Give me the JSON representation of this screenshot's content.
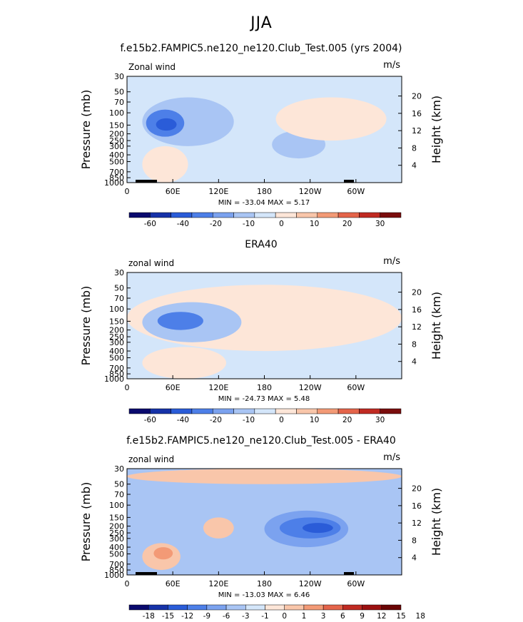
{
  "page_title": "JJA",
  "chart_data": [
    {
      "type": "heatmap",
      "title": "f.e15b2.FAMPIC5.ne120_ne120.Club_Test.005 (yrs 2004)",
      "left_label": "Zonal wind",
      "units": "m/s",
      "ylabel": "Pressure (mb)",
      "ylabel_right": "Height (km)",
      "x_ticks": [
        "0",
        "60E",
        "120E",
        "180",
        "120W",
        "60W"
      ],
      "y_ticks": [
        "30",
        "50",
        "70",
        "100",
        "150",
        "200",
        "250",
        "300",
        "400",
        "500",
        "700",
        "850",
        "1000"
      ],
      "height_ticks": [
        "20",
        "16",
        "12",
        "8",
        "4"
      ],
      "stats": "MIN = -33.04   MAX =    5.17",
      "colorbar_labels": [
        "-60",
        "-40",
        "-20",
        "-10",
        "0",
        "10",
        "20",
        "30"
      ],
      "regions": [
        {
          "level": "-5",
          "x": [
            20,
            140
          ],
          "p": [
            60,
            300
          ]
        },
        {
          "level": "-15",
          "x": [
            25,
            75
          ],
          "p": [
            90,
            220
          ]
        },
        {
          "level": "-25",
          "x": [
            38,
            65
          ],
          "p": [
            120,
            180
          ]
        },
        {
          "level": "-5",
          "x": [
            190,
            260
          ],
          "p": [
            180,
            450
          ]
        },
        {
          "level": "5",
          "x": [
            195,
            340
          ],
          "p": [
            60,
            250
          ]
        },
        {
          "level": "5",
          "x": [
            20,
            80
          ],
          "p": [
            300,
            1000
          ]
        }
      ]
    },
    {
      "type": "heatmap",
      "title": "ERA40",
      "left_label": "zonal wind",
      "units": "m/s",
      "ylabel": "Pressure (mb)",
      "ylabel_right": "Height (km)",
      "x_ticks": [
        "0",
        "60E",
        "120E",
        "180",
        "120W",
        "60W"
      ],
      "y_ticks": [
        "30",
        "50",
        "70",
        "100",
        "150",
        "200",
        "250",
        "300",
        "400",
        "500",
        "700",
        "850",
        "1000"
      ],
      "height_ticks": [
        "20",
        "16",
        "12",
        "8",
        "4"
      ],
      "stats": "MIN = -24.73   MAX =    5.48",
      "colorbar_labels": [
        "-60",
        "-40",
        "-20",
        "-10",
        "0",
        "10",
        "20",
        "30"
      ],
      "regions": [
        {
          "level": "5",
          "x": [
            0,
            360
          ],
          "p": [
            45,
            400
          ]
        },
        {
          "level": "-5",
          "x": [
            20,
            150
          ],
          "p": [
            80,
            300
          ]
        },
        {
          "level": "-15",
          "x": [
            40,
            100
          ],
          "p": [
            110,
            200
          ]
        },
        {
          "level": "5",
          "x": [
            20,
            130
          ],
          "p": [
            350,
            1000
          ]
        },
        {
          "level": "5",
          "x": [
            200,
            330
          ],
          "p": [
            70,
            250
          ]
        }
      ]
    },
    {
      "type": "heatmap",
      "title": "f.e15b2.FAMPIC5.ne120_ne120.Club_Test.005 - ERA40",
      "left_label": "zonal wind",
      "units": "m/s",
      "ylabel": "Pressure (mb)",
      "ylabel_right": "Height (km)",
      "x_ticks": [
        "0",
        "60E",
        "120E",
        "180",
        "120W",
        "60W"
      ],
      "y_ticks": [
        "30",
        "50",
        "70",
        "100",
        "150",
        "200",
        "250",
        "300",
        "400",
        "500",
        "700",
        "850",
        "1000"
      ],
      "height_ticks": [
        "20",
        "16",
        "12",
        "8",
        "4"
      ],
      "stats": "MIN = -13.03   MAX =    6.46",
      "colorbar_labels": [
        "-18",
        "-15",
        "-12",
        "-9",
        "-6",
        "-3",
        "-1",
        "0",
        "1",
        "3",
        "6",
        "9",
        "12",
        "15",
        "18"
      ],
      "regions": [
        {
          "level": "3",
          "x": [
            0,
            360
          ],
          "p": [
            30,
            50
          ]
        },
        {
          "level": "-3",
          "x": [
            180,
            290
          ],
          "p": [
            120,
            400
          ]
        },
        {
          "level": "-6",
          "x": [
            200,
            280
          ],
          "p": [
            150,
            300
          ]
        },
        {
          "level": "-9",
          "x": [
            230,
            270
          ],
          "p": [
            180,
            250
          ]
        },
        {
          "level": "3",
          "x": [
            100,
            140
          ],
          "p": [
            150,
            300
          ]
        },
        {
          "level": "3",
          "x": [
            20,
            70
          ],
          "p": [
            350,
            850
          ]
        },
        {
          "level": "6",
          "x": [
            35,
            60
          ],
          "p": [
            400,
            600
          ]
        }
      ]
    }
  ]
}
